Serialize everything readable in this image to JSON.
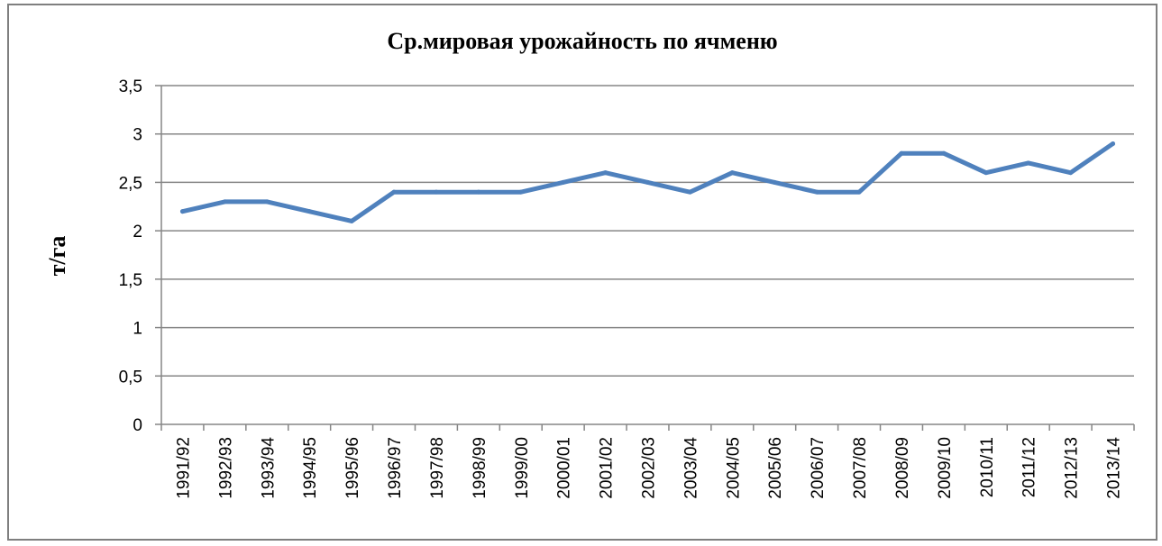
{
  "chart_data": {
    "type": "line",
    "title": "Ср.мировая урожайность по ячменю",
    "xlabel": "",
    "ylabel": "т/га",
    "categories": [
      "1991/92",
      "1992/93",
      "1993/94",
      "1994/95",
      "1995/96",
      "1996/97",
      "1997/98",
      "1998/99",
      "1999/00",
      "2000/01",
      "2001/02",
      "2002/03",
      "2003/04",
      "2004/05",
      "2005/06",
      "2006/07",
      "2007/08",
      "2008/09",
      "2009/10",
      "2010/11",
      "2011/12",
      "2012/13",
      "2013/14"
    ],
    "values": [
      2.2,
      2.3,
      2.3,
      2.2,
      2.1,
      2.4,
      2.4,
      2.4,
      2.4,
      2.5,
      2.6,
      2.5,
      2.4,
      2.6,
      2.5,
      2.4,
      2.4,
      2.8,
      2.8,
      2.6,
      2.7,
      2.6,
      2.9
    ],
    "ylim": [
      0,
      3.5
    ],
    "yticks": [
      "0",
      "0,5",
      "1",
      "1,5",
      "2",
      "2,5",
      "3",
      "3,5"
    ],
    "grid": true,
    "legend": "none",
    "line_color": "#4f81bd"
  }
}
